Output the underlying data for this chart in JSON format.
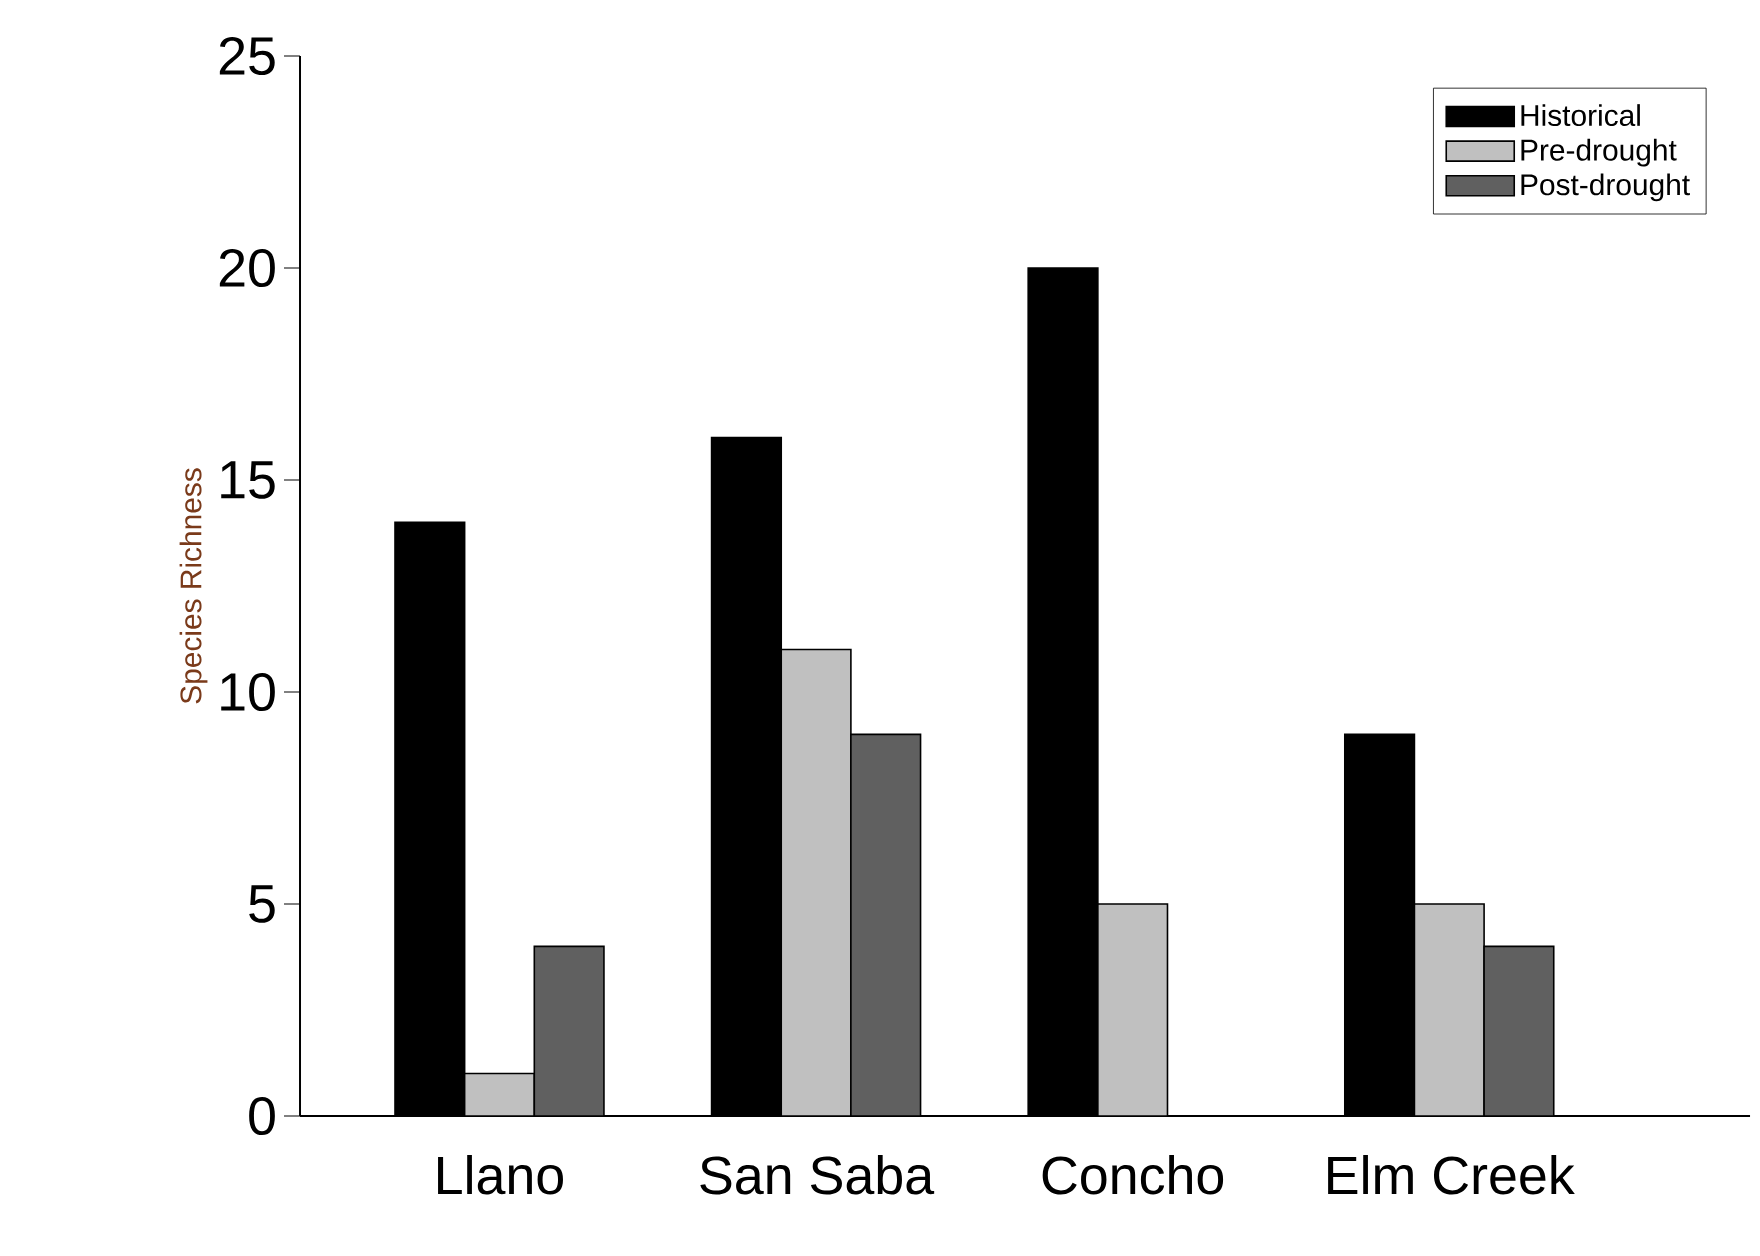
{
  "chart_data": {
    "type": "bar",
    "ylabel": "Species Richness",
    "categories": [
      "Llano",
      "San Saba",
      "Concho",
      "Elm Creek"
    ],
    "series": [
      {
        "name": "Historical",
        "color": "#000000",
        "values": [
          14,
          16,
          20,
          9
        ]
      },
      {
        "name": "Pre-drought",
        "color": "#c0c0c0",
        "values": [
          1,
          11,
          5,
          5
        ]
      },
      {
        "name": "Post-drought",
        "color": "#606060",
        "values": [
          4,
          9,
          null,
          4
        ]
      }
    ],
    "ylim": [
      0,
      25
    ],
    "yticks": [
      0,
      5,
      10,
      15,
      20,
      25
    ],
    "legend": "top right"
  }
}
